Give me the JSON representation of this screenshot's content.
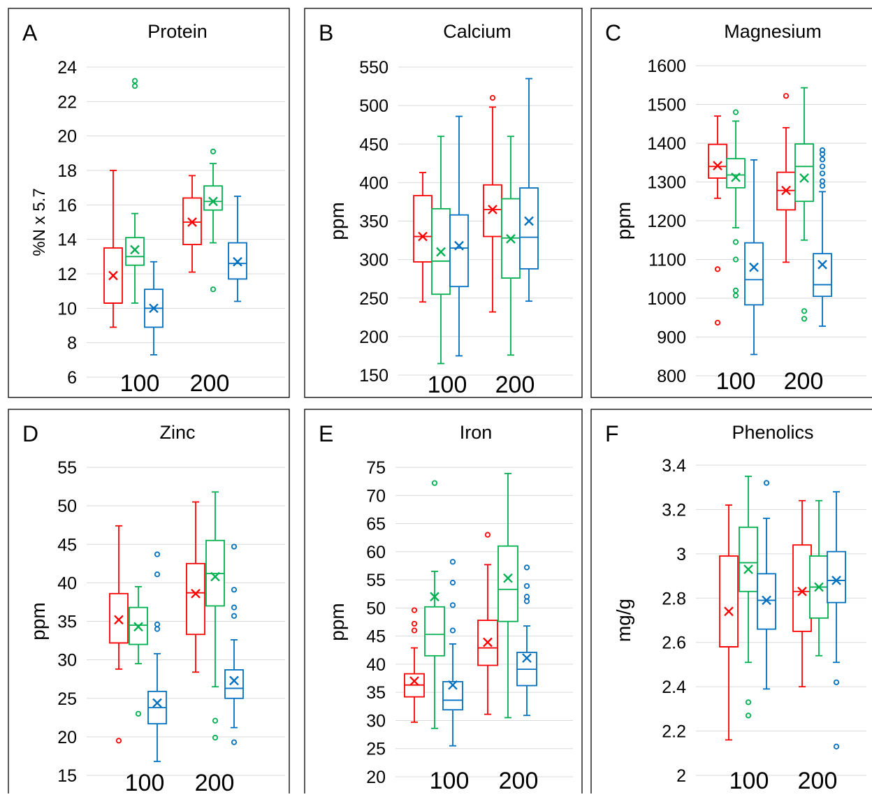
{
  "colors": {
    "red": "#ff0000",
    "green": "#00b050",
    "blue": "#0070c0",
    "grid": "#d9d9d9",
    "frame": "#000000",
    "text": "#000000"
  },
  "chart_data": [
    {
      "type": "box",
      "letter": "A",
      "title": "Protein",
      "ylabel": "%N x 5.7",
      "ylim": [
        6,
        24
      ],
      "ytick_step": 2,
      "yticks": [
        "6",
        "8",
        "10",
        "12",
        "14",
        "16",
        "18",
        "20",
        "22",
        "24"
      ],
      "categories": [
        "100",
        "200"
      ],
      "boxes": [
        {
          "group": "100",
          "color": "red",
          "min": 8.9,
          "q1": 10.3,
          "median": 10.3,
          "q3": 13.5,
          "max": 18.0,
          "mean": 11.9,
          "outliers": []
        },
        {
          "group": "100",
          "color": "green",
          "min": 10.3,
          "q1": 12.5,
          "median": 13.0,
          "q3": 14.1,
          "max": 15.5,
          "mean": 13.4,
          "outliers": [
            22.9,
            23.2
          ]
        },
        {
          "group": "100",
          "color": "blue",
          "min": 7.3,
          "q1": 8.9,
          "median": 10.0,
          "q3": 11.1,
          "max": 12.7,
          "mean": 10.0,
          "outliers": []
        },
        {
          "group": "200",
          "color": "red",
          "min": 12.1,
          "q1": 13.7,
          "median": 15.0,
          "q3": 16.4,
          "max": 17.7,
          "mean": 15.0,
          "outliers": []
        },
        {
          "group": "200",
          "color": "green",
          "min": 13.8,
          "q1": 15.7,
          "median": 16.2,
          "q3": 17.1,
          "max": 18.4,
          "mean": 16.2,
          "outliers": [
            11.1,
            19.1
          ]
        },
        {
          "group": "200",
          "color": "blue",
          "min": 10.4,
          "q1": 11.7,
          "median": 12.6,
          "q3": 13.8,
          "max": 16.5,
          "mean": 12.7,
          "outliers": []
        }
      ]
    },
    {
      "type": "box",
      "letter": "B",
      "title": "Calcium",
      "ylabel": "ppm",
      "ylim": [
        150,
        550
      ],
      "ytick_step": 50,
      "yticks": [
        "150",
        "200",
        "250",
        "300",
        "350",
        "400",
        "450",
        "500",
        "550"
      ],
      "categories": [
        "100",
        "200"
      ],
      "boxes": [
        {
          "group": "100",
          "color": "red",
          "min": 245,
          "q1": 297,
          "median": 330,
          "q3": 383,
          "max": 413,
          "mean": 330,
          "outliers": []
        },
        {
          "group": "100",
          "color": "green",
          "min": 165,
          "q1": 255,
          "median": 298,
          "q3": 366,
          "max": 460,
          "mean": 310,
          "outliers": []
        },
        {
          "group": "100",
          "color": "blue",
          "min": 175,
          "q1": 265,
          "median": 315,
          "q3": 358,
          "max": 486,
          "mean": 318,
          "outliers": []
        },
        {
          "group": "200",
          "color": "red",
          "min": 232,
          "q1": 330,
          "median": 365,
          "q3": 397,
          "max": 498,
          "mean": 365,
          "outliers": [
            510
          ]
        },
        {
          "group": "200",
          "color": "green",
          "min": 176,
          "q1": 276,
          "median": 328,
          "q3": 379,
          "max": 460,
          "mean": 327,
          "outliers": []
        },
        {
          "group": "200",
          "color": "blue",
          "min": 246,
          "q1": 288,
          "median": 329,
          "q3": 393,
          "max": 535,
          "mean": 350,
          "outliers": []
        }
      ]
    },
    {
      "type": "box",
      "letter": "C",
      "title": "Magnesium",
      "ylabel": "ppm",
      "ylim": [
        800,
        1600
      ],
      "ytick_step": 100,
      "yticks": [
        "800",
        "900",
        "1000",
        "1100",
        "1200",
        "1300",
        "1400",
        "1500",
        "1600"
      ],
      "categories": [
        "100",
        "200"
      ],
      "boxes": [
        {
          "group": "100",
          "color": "red",
          "min": 1258,
          "q1": 1310,
          "median": 1340,
          "q3": 1397,
          "max": 1470,
          "mean": 1342,
          "outliers": [
            1075,
            937
          ]
        },
        {
          "group": "100",
          "color": "green",
          "min": 1182,
          "q1": 1285,
          "median": 1318,
          "q3": 1360,
          "max": 1457,
          "mean": 1312,
          "outliers": [
            1480,
            1145,
            1100,
            1020,
            1007
          ]
        },
        {
          "group": "100",
          "color": "blue",
          "min": 855,
          "q1": 983,
          "median": 1048,
          "q3": 1143,
          "max": 1357,
          "mean": 1080,
          "outliers": []
        },
        {
          "group": "200",
          "color": "red",
          "min": 1093,
          "q1": 1228,
          "median": 1278,
          "q3": 1325,
          "max": 1440,
          "mean": 1278,
          "outliers": [
            1522
          ]
        },
        {
          "group": "200",
          "color": "green",
          "min": 1150,
          "q1": 1250,
          "median": 1340,
          "q3": 1398,
          "max": 1543,
          "mean": 1310,
          "outliers": [
            967,
            947
          ]
        },
        {
          "group": "200",
          "color": "blue",
          "min": 928,
          "q1": 1005,
          "median": 1035,
          "q3": 1115,
          "max": 1275,
          "mean": 1087,
          "outliers": [
            1290,
            1302,
            1322,
            1340,
            1358,
            1372,
            1382
          ]
        }
      ]
    },
    {
      "type": "box",
      "letter": "D",
      "title": "Zinc",
      "ylabel": "ppm",
      "ylim": [
        15,
        55
      ],
      "ytick_step": 5,
      "yticks": [
        "15",
        "20",
        "25",
        "30",
        "35",
        "40",
        "45",
        "50",
        "55"
      ],
      "categories": [
        "100",
        "200"
      ],
      "boxes": [
        {
          "group": "100",
          "color": "red",
          "min": 28.8,
          "q1": 32.2,
          "median": 32.2,
          "q3": 38.6,
          "max": 47.4,
          "mean": 35.2,
          "outliers": [
            19.5
          ]
        },
        {
          "group": "100",
          "color": "green",
          "min": 29.5,
          "q1": 32.0,
          "median": 34.5,
          "q3": 36.8,
          "max": 39.5,
          "mean": 34.3,
          "outliers": [
            23.0
          ]
        },
        {
          "group": "100",
          "color": "blue",
          "min": 16.8,
          "q1": 21.7,
          "median": 23.8,
          "q3": 25.9,
          "max": 30.8,
          "mean": 24.4,
          "outliers": [
            34.0,
            34.6,
            41.1,
            43.7
          ]
        },
        {
          "group": "200",
          "color": "red",
          "min": 28.4,
          "q1": 33.3,
          "median": 38.7,
          "q3": 42.5,
          "max": 50.5,
          "mean": 38.6,
          "outliers": []
        },
        {
          "group": "200",
          "color": "green",
          "min": 26.5,
          "q1": 37.0,
          "median": 41.2,
          "q3": 45.5,
          "max": 51.8,
          "mean": 40.8,
          "outliers": [
            22.1,
            19.9
          ]
        },
        {
          "group": "200",
          "color": "blue",
          "min": 21.2,
          "q1": 25.0,
          "median": 26.3,
          "q3": 28.7,
          "max": 32.6,
          "mean": 27.3,
          "outliers": [
            19.3,
            35.7,
            36.8,
            39.1,
            44.7
          ]
        }
      ]
    },
    {
      "type": "box",
      "letter": "E",
      "title": "Iron",
      "ylabel": "ppm",
      "ylim": [
        20,
        75
      ],
      "ytick_step": 5,
      "yticks": [
        "20",
        "25",
        "30",
        "35",
        "40",
        "45",
        "50",
        "55",
        "60",
        "65",
        "70",
        "75"
      ],
      "categories": [
        "100",
        "200"
      ],
      "boxes": [
        {
          "group": "100",
          "color": "red",
          "min": 29.7,
          "q1": 34.2,
          "median": 36.3,
          "q3": 38.3,
          "max": 42.9,
          "mean": 37.0,
          "outliers": [
            46.0,
            47.2,
            49.6
          ]
        },
        {
          "group": "100",
          "color": "green",
          "min": 28.6,
          "q1": 41.5,
          "median": 45.3,
          "q3": 50.2,
          "max": 56.5,
          "mean": 52.0,
          "outliers": [
            72.2
          ]
        },
        {
          "group": "100",
          "color": "blue",
          "min": 25.5,
          "q1": 31.9,
          "median": 33.6,
          "q3": 36.9,
          "max": 43.6,
          "mean": 36.3,
          "outliers": [
            46.0,
            50.5,
            54.5,
            58.2
          ]
        },
        {
          "group": "200",
          "color": "red",
          "min": 31.1,
          "q1": 39.8,
          "median": 42.9,
          "q3": 47.8,
          "max": 57.7,
          "mean": 43.9,
          "outliers": [
            63.0
          ]
        },
        {
          "group": "200",
          "color": "green",
          "min": 30.5,
          "q1": 47.6,
          "median": 53.3,
          "q3": 61.0,
          "max": 73.9,
          "mean": 55.3,
          "outliers": []
        },
        {
          "group": "200",
          "color": "blue",
          "min": 30.9,
          "q1": 36.2,
          "median": 39.1,
          "q3": 42.1,
          "max": 46.8,
          "mean": 41.1,
          "outliers": [
            51.2,
            52.0,
            53.9,
            57.2
          ]
        }
      ]
    },
    {
      "type": "box",
      "letter": "F",
      "title": "Phenolics",
      "ylabel": "mg/g",
      "ylim": [
        2,
        3.4
      ],
      "ytick_step": 0.2,
      "yticks": [
        "2",
        "2.2",
        "2.4",
        "2.6",
        "2.8",
        "3",
        "3.2",
        "3.4"
      ],
      "categories": [
        "100",
        "200"
      ],
      "boxes": [
        {
          "group": "100",
          "color": "red",
          "min": 2.16,
          "q1": 2.58,
          "median": 2.58,
          "q3": 2.99,
          "max": 3.22,
          "mean": 2.74,
          "outliers": []
        },
        {
          "group": "100",
          "color": "green",
          "min": 2.51,
          "q1": 2.83,
          "median": 2.96,
          "q3": 3.12,
          "max": 3.35,
          "mean": 2.93,
          "outliers": [
            2.27,
            2.33
          ]
        },
        {
          "group": "100",
          "color": "blue",
          "min": 2.39,
          "q1": 2.66,
          "median": 2.79,
          "q3": 2.91,
          "max": 3.16,
          "mean": 2.79,
          "outliers": [
            3.32
          ]
        },
        {
          "group": "200",
          "color": "red",
          "min": 2.4,
          "q1": 2.65,
          "median": 2.83,
          "q3": 3.04,
          "max": 3.24,
          "mean": 2.83,
          "outliers": []
        },
        {
          "group": "200",
          "color": "green",
          "min": 2.54,
          "q1": 2.71,
          "median": 2.85,
          "q3": 2.99,
          "max": 3.24,
          "mean": 2.85,
          "outliers": []
        },
        {
          "group": "200",
          "color": "blue",
          "min": 2.51,
          "q1": 2.78,
          "median": 2.88,
          "q3": 3.01,
          "max": 3.28,
          "mean": 2.88,
          "outliers": [
            2.42,
            2.13
          ]
        }
      ]
    }
  ]
}
